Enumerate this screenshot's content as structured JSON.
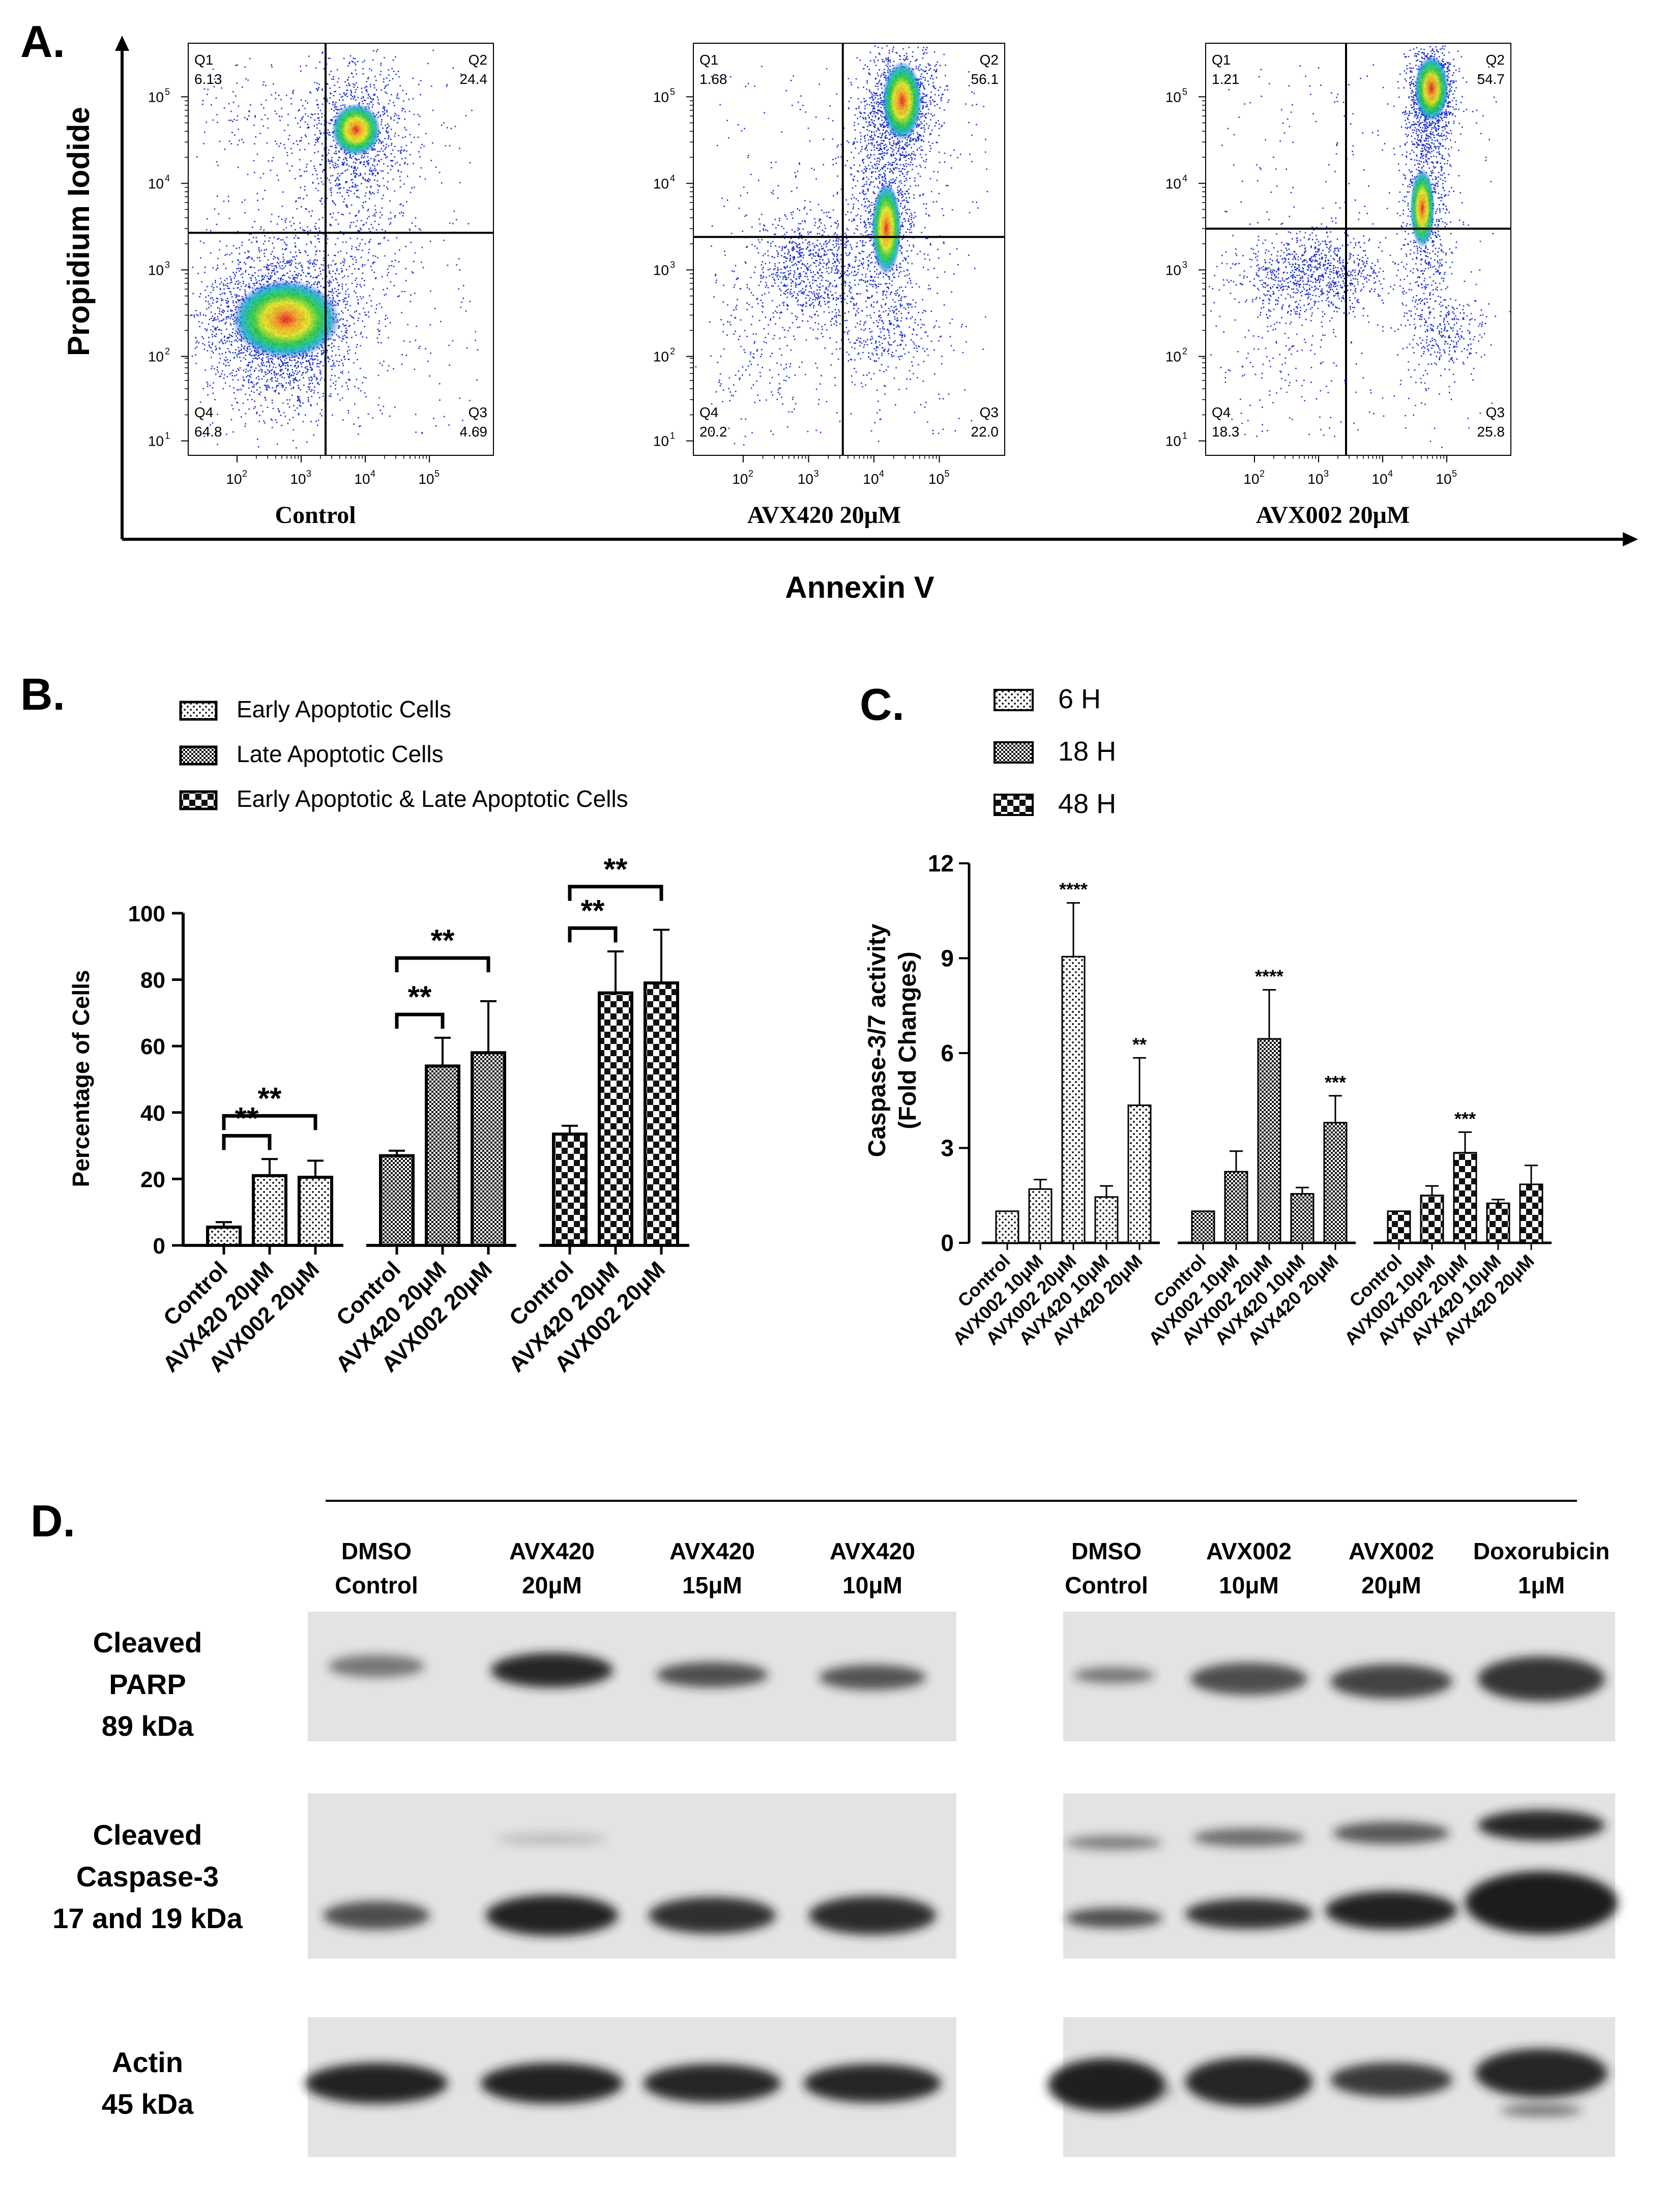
{
  "panel_labels": {
    "a": "A.",
    "b": "B.",
    "c": "C.",
    "d": "D."
  },
  "chart_data": [
    {
      "panel": "A",
      "type": "scatter",
      "y_axis_title": "Propidium Iodide",
      "x_axis_title": "Annexin V",
      "x_ticks": [
        "10",
        "10",
        "10",
        "10"
      ],
      "x_tick_exponents": [
        "2",
        "3",
        "4",
        "5"
      ],
      "y_ticks": [
        "10",
        "10",
        "10",
        "10",
        "10"
      ],
      "y_tick_exponents": [
        "1",
        "2",
        "3",
        "4",
        "5"
      ],
      "log_scale": true,
      "plots": [
        {
          "label": "Control",
          "quadrants": {
            "q1": {
              "name": "Q1",
              "value": "6.13"
            },
            "q2": {
              "name": "Q2",
              "value": "24.4"
            },
            "q3": {
              "name": "Q3",
              "value": "4.69"
            },
            "q4": {
              "name": "Q4",
              "value": "64.8"
            }
          }
        },
        {
          "label": "AVX420 20μM",
          "quadrants": {
            "q1": {
              "name": "Q1",
              "value": "1.68"
            },
            "q2": {
              "name": "Q2",
              "value": "56.1"
            },
            "q3": {
              "name": "Q3",
              "value": "22.0"
            },
            "q4": {
              "name": "Q4",
              "value": "20.2"
            }
          }
        },
        {
          "label": "AVX002 20μM",
          "quadrants": {
            "q1": {
              "name": "Q1",
              "value": "1.21"
            },
            "q2": {
              "name": "Q2",
              "value": "54.7"
            },
            "q3": {
              "name": "Q3",
              "value": "25.8"
            },
            "q4": {
              "name": "Q4",
              "value": "18.3"
            }
          }
        }
      ]
    },
    {
      "panel": "B",
      "type": "bar",
      "ylabel": "Percentage of Cells",
      "ylim": [
        0,
        100
      ],
      "y_ticks": [
        "0",
        "20",
        "40",
        "60",
        "80",
        "100"
      ],
      "legend": [
        "Early Apoptotic Cells",
        "Late Apoptotic Cells",
        "Early Apoptotic & Late Apoptotic Cells"
      ],
      "categories": [
        "Control",
        "AVX420 20μM",
        "AVX002 20μM"
      ],
      "series": [
        {
          "name": "Early Apoptotic Cells",
          "values": [
            5.5,
            21,
            20.5
          ],
          "errors": [
            1.5,
            5,
            5
          ]
        },
        {
          "name": "Late Apoptotic Cells",
          "values": [
            27,
            54,
            58
          ],
          "errors": [
            1.5,
            8.5,
            15.5
          ]
        },
        {
          "name": "Early Apoptotic & Late Apoptotic Cells",
          "values": [
            33.5,
            76,
            79
          ],
          "errors": [
            2.5,
            12.5,
            16
          ]
        }
      ],
      "significance": "**"
    },
    {
      "panel": "C",
      "type": "bar",
      "ylabel": "Caspase-3/7 activity\n(Fold Changes)",
      "ylabel_lines": [
        "Caspase-3/7 activity",
        "(Fold Changes)"
      ],
      "ylim": [
        0,
        12
      ],
      "y_ticks": [
        "0",
        "3",
        "6",
        "9",
        "12"
      ],
      "legend": [
        "6 H",
        "18 H",
        "48 H"
      ],
      "categories": [
        "Control",
        "AVX002 10μM",
        "AVX002 20μM",
        "AVX420 10μM",
        "AVX420 20μM"
      ],
      "series": [
        {
          "name": "6 H",
          "values": [
            1.0,
            1.7,
            9.05,
            1.45,
            4.35
          ],
          "errors": [
            0,
            0.3,
            1.7,
            0.35,
            1.5
          ],
          "stars": [
            "",
            "",
            "****",
            "",
            "**"
          ]
        },
        {
          "name": "18 H",
          "values": [
            1.0,
            2.25,
            6.45,
            1.55,
            3.8
          ],
          "errors": [
            0,
            0.65,
            1.55,
            0.2,
            0.85
          ],
          "stars": [
            "",
            "",
            "****",
            "",
            "***"
          ]
        },
        {
          "name": "48 H",
          "values": [
            1.0,
            1.5,
            2.85,
            1.25,
            1.85
          ],
          "errors": [
            0,
            0.3,
            0.65,
            0.12,
            0.6
          ],
          "stars": [
            "",
            "",
            "***",
            "",
            ""
          ]
        }
      ]
    }
  ],
  "western": {
    "left_lanes": [
      {
        "line1": "DMSO",
        "line2": "Control"
      },
      {
        "line1": "AVX420",
        "line2": "20μM"
      },
      {
        "line1": "AVX420",
        "line2": "15μM"
      },
      {
        "line1": "AVX420",
        "line2": "10μM"
      }
    ],
    "right_lanes": [
      {
        "line1": "DMSO",
        "line2": "Control"
      },
      {
        "line1": "AVX002",
        "line2": "10μM"
      },
      {
        "line1": "AVX002",
        "line2": "20μM"
      },
      {
        "line1": "Doxorubicin",
        "line2": "1μM"
      }
    ],
    "rows": [
      {
        "lines": [
          "Cleaved",
          "PARP",
          "89 kDa"
        ]
      },
      {
        "lines": [
          "Cleaved",
          "Caspase-3",
          "17 and 19 kDa"
        ]
      },
      {
        "lines": [
          "Actin",
          "45 kDa"
        ]
      }
    ]
  },
  "colors": {
    "axis": "#111111",
    "blot_bg": "#e3e3e3",
    "band": "#1a1a1a",
    "flow_dots": "#1a2fd0"
  }
}
